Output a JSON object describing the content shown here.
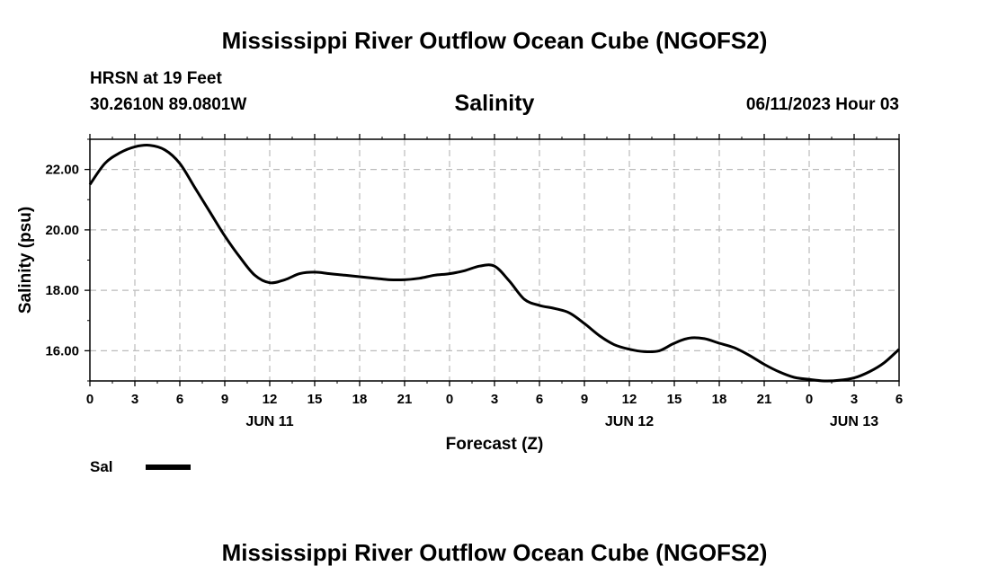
{
  "page": {
    "title_top": "Mississippi River Outflow Ocean Cube (NGOFS2)",
    "title_bottom": "Mississippi River Outflow Ocean Cube (NGOFS2)",
    "station": "HRSN at 19 Feet",
    "coords": "30.2610N  89.0801W",
    "subtitle": "Salinity",
    "datetime": "06/11/2023 Hour 03"
  },
  "legend": {
    "label": "Sal"
  },
  "chart_data": {
    "type": "line",
    "title": "Salinity",
    "xlabel": "Forecast (Z)",
    "ylabel": "Salinity (psu)",
    "xlim": [
      0,
      54
    ],
    "ylim": [
      15.0,
      23.0
    ],
    "grid": true,
    "x_ticks": [
      0,
      3,
      6,
      9,
      12,
      15,
      18,
      21,
      24,
      27,
      30,
      33,
      36,
      39,
      42,
      45,
      48,
      51,
      54
    ],
    "x_tick_labels": [
      "0",
      "3",
      "6",
      "9",
      "12",
      "15",
      "18",
      "21",
      "0",
      "3",
      "6",
      "9",
      "12",
      "15",
      "18",
      "21",
      "0",
      "3",
      "6"
    ],
    "y_ticks": [
      16,
      18,
      20,
      22
    ],
    "y_tick_labels": [
      "16.00",
      "18.00",
      "20.00",
      "22.00"
    ],
    "date_labels": [
      {
        "x": 12,
        "label": "JUN 11"
      },
      {
        "x": 36,
        "label": "JUN 12"
      },
      {
        "x": 51,
        "label": "JUN 13"
      }
    ],
    "series": [
      {
        "name": "Sal",
        "color": "#000000",
        "x": [
          0,
          1,
          2,
          3,
          4,
          5,
          6,
          7,
          8,
          9,
          10,
          11,
          12,
          13,
          14,
          15,
          16,
          17,
          18,
          19,
          20,
          21,
          22,
          23,
          24,
          25,
          26,
          27,
          28,
          29,
          30,
          31,
          32,
          33,
          34,
          35,
          36,
          37,
          38,
          39,
          40,
          41,
          42,
          43,
          44,
          45,
          46,
          47,
          48,
          49,
          50,
          51,
          52,
          53,
          54
        ],
        "values": [
          21.5,
          22.2,
          22.55,
          22.75,
          22.8,
          22.65,
          22.2,
          21.4,
          20.6,
          19.8,
          19.1,
          18.5,
          18.25,
          18.35,
          18.55,
          18.6,
          18.55,
          18.5,
          18.45,
          18.4,
          18.35,
          18.35,
          18.4,
          18.5,
          18.55,
          18.65,
          18.8,
          18.8,
          18.3,
          17.7,
          17.5,
          17.4,
          17.25,
          16.9,
          16.5,
          16.2,
          16.05,
          15.97,
          16.0,
          16.25,
          16.42,
          16.4,
          16.25,
          16.1,
          15.85,
          15.55,
          15.3,
          15.12,
          15.05,
          15.0,
          15.02,
          15.1,
          15.3,
          15.6,
          16.05
        ]
      }
    ]
  }
}
